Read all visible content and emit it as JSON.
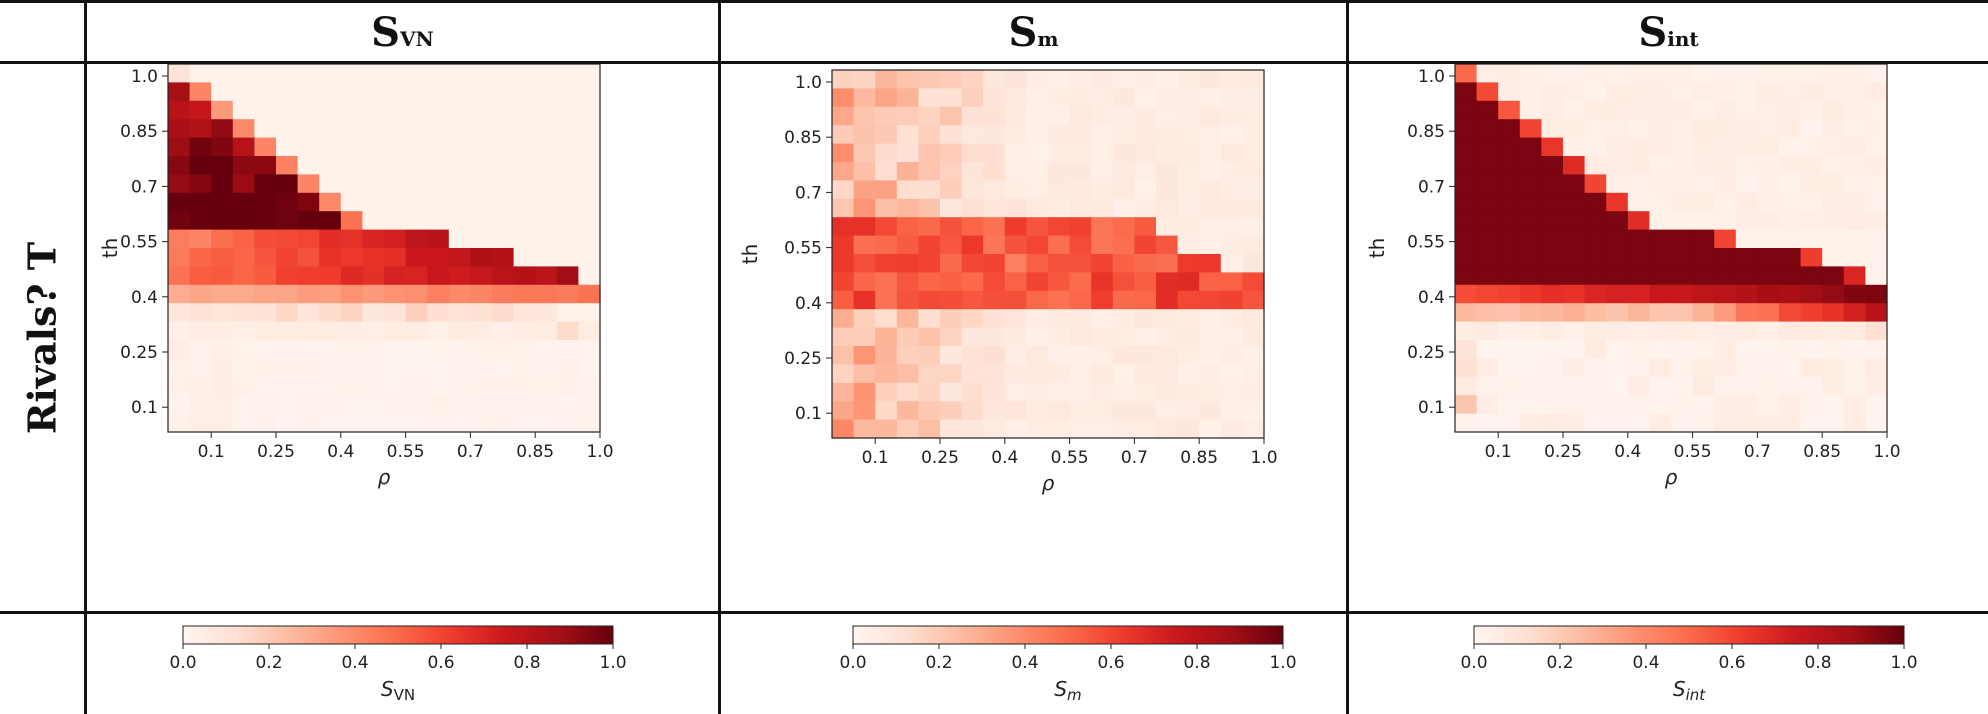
{
  "table": {
    "row_label": "Rivals? T",
    "columns": [
      {
        "main": "S",
        "sub": "VN"
      },
      {
        "main": "S",
        "sub": "m"
      },
      {
        "main": "S",
        "sub": "int"
      }
    ]
  },
  "chart_data": [
    {
      "type": "heatmap",
      "title": "",
      "xlabel": "ρ",
      "ylabel": "th",
      "xlim": [
        0.0,
        1.0
      ],
      "ylim": [
        0.0,
        1.0
      ],
      "xticks": [
        "0.1",
        "0.25",
        "0.4",
        "0.55",
        "0.7",
        "0.85",
        "1.0"
      ],
      "yticks": [
        "1.0",
        "0.85",
        "0.7",
        "0.55",
        "0.4",
        "0.25",
        "0.1"
      ],
      "colorbar": {
        "min": 0.0,
        "max": 1.0,
        "ticks": [
          "0.0",
          "0.2",
          "0.4",
          "0.6",
          "0.8",
          "1.0"
        ],
        "label": "S",
        "label_sub": "VN"
      },
      "colormap": "Reds",
      "grid_size": [
        20,
        20
      ],
      "pattern": "svn"
    },
    {
      "type": "heatmap",
      "title": "",
      "xlabel": "ρ",
      "ylabel": "th",
      "xlim": [
        0.0,
        1.0
      ],
      "ylim": [
        0.0,
        1.0
      ],
      "xticks": [
        "0.1",
        "0.25",
        "0.4",
        "0.55",
        "0.7",
        "0.85",
        "1.0"
      ],
      "yticks": [
        "1.0",
        "0.85",
        "0.7",
        "0.55",
        "0.4",
        "0.25",
        "0.1"
      ],
      "colorbar": {
        "min": 0.0,
        "max": 1.0,
        "ticks": [
          "0.0",
          "0.2",
          "0.4",
          "0.6",
          "0.8",
          "1.0"
        ],
        "label": "S",
        "label_sub": "m"
      },
      "colormap": "Reds",
      "grid_size": [
        20,
        20
      ],
      "pattern": "sm"
    },
    {
      "type": "heatmap",
      "title": "",
      "xlabel": "ρ",
      "ylabel": "th",
      "xlim": [
        0.0,
        1.0
      ],
      "ylim": [
        0.0,
        1.0
      ],
      "xticks": [
        "0.1",
        "0.25",
        "0.4",
        "0.55",
        "0.7",
        "0.85",
        "1.0"
      ],
      "yticks": [
        "1.0",
        "0.85",
        "0.7",
        "0.55",
        "0.4",
        "0.25",
        "0.1"
      ],
      "colorbar": {
        "min": 0.0,
        "max": 1.0,
        "ticks": [
          "0.0",
          "0.2",
          "0.4",
          "0.6",
          "0.8",
          "1.0"
        ],
        "label": "S",
        "label_sub": "int"
      },
      "colormap": "Reds",
      "grid_size": [
        20,
        20
      ],
      "pattern": "sint"
    }
  ]
}
